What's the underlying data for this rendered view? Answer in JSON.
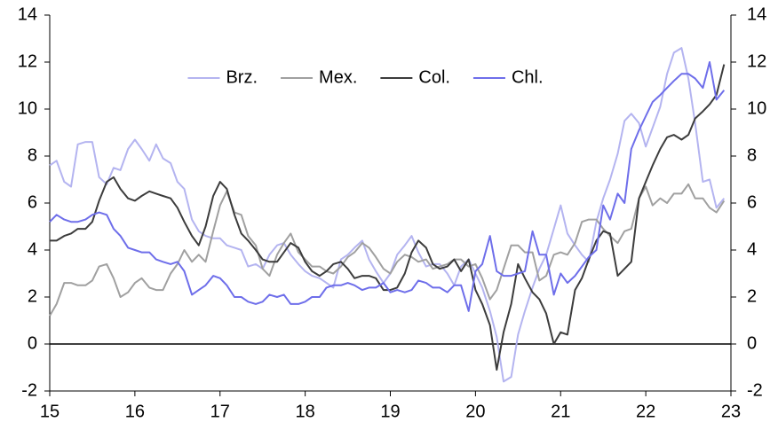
{
  "chart_data": {
    "type": "line",
    "x": [
      15,
      15.08,
      15.17,
      15.25,
      15.33,
      15.42,
      15.5,
      15.58,
      15.67,
      15.75,
      15.83,
      15.92,
      16,
      16.08,
      16.17,
      16.25,
      16.33,
      16.42,
      16.5,
      16.58,
      16.67,
      16.75,
      16.83,
      16.92,
      17,
      17.08,
      17.17,
      17.25,
      17.33,
      17.42,
      17.5,
      17.58,
      17.67,
      17.75,
      17.83,
      17.92,
      18,
      18.08,
      18.17,
      18.25,
      18.33,
      18.42,
      18.5,
      18.58,
      18.67,
      18.75,
      18.83,
      18.92,
      19,
      19.08,
      19.17,
      19.25,
      19.33,
      19.42,
      19.5,
      19.58,
      19.67,
      19.75,
      19.83,
      19.92,
      20,
      20.08,
      20.17,
      20.25,
      20.33,
      20.42,
      20.5,
      20.58,
      20.67,
      20.75,
      20.83,
      20.92,
      21,
      21.08,
      21.17,
      21.25,
      21.33,
      21.42,
      21.5,
      21.58,
      21.67,
      21.75,
      21.83,
      21.92,
      22,
      22.08,
      22.17,
      22.25,
      22.33,
      22.42,
      22.5,
      22.58,
      22.67,
      22.75,
      22.83,
      22.92
    ],
    "series": [
      {
        "name": "Brz.",
        "color": "#b4b4f0",
        "values": [
          7.6,
          7.8,
          6.9,
          6.7,
          8.5,
          8.6,
          8.6,
          7.1,
          6.8,
          7.5,
          7.4,
          8.3,
          8.7,
          8.3,
          7.8,
          8.5,
          7.9,
          7.7,
          6.9,
          6.6,
          5.3,
          4.8,
          4.6,
          4.5,
          4.5,
          4.2,
          4.1,
          4.0,
          3.3,
          3.4,
          3.2,
          3.8,
          4.2,
          4.3,
          3.8,
          3.4,
          3.1,
          2.9,
          2.8,
          2.6,
          2.4,
          3.6,
          3.8,
          4.1,
          4.4,
          3.6,
          3.1,
          2.6,
          3.0,
          3.8,
          4.2,
          4.6,
          3.9,
          3.3,
          3.4,
          3.4,
          3.0,
          2.5,
          3.3,
          3.6,
          3.0,
          2.4,
          1.4,
          0.3,
          -1.6,
          -1.4,
          0.4,
          1.4,
          2.4,
          3.2,
          3.8,
          4.9,
          5.9,
          4.7,
          4.2,
          3.8,
          3.5,
          5.2,
          6.2,
          7.0,
          8.1,
          9.5,
          9.8,
          9.4,
          8.4,
          9.2,
          10.1,
          11.5,
          12.4,
          12.6,
          11.3,
          9.4,
          6.9,
          7.0,
          5.8,
          6.2
        ]
      },
      {
        "name": "Mex.",
        "color": "#a0a0a0",
        "values": [
          1.2,
          1.7,
          2.6,
          2.6,
          2.5,
          2.5,
          2.7,
          3.3,
          3.4,
          2.8,
          2.0,
          2.2,
          2.6,
          2.8,
          2.4,
          2.3,
          2.3,
          3.0,
          3.4,
          4.0,
          3.5,
          3.8,
          3.5,
          4.8,
          5.9,
          6.5,
          5.6,
          5.5,
          4.6,
          4.2,
          3.2,
          2.9,
          3.8,
          4.3,
          4.7,
          3.9,
          3.6,
          3.3,
          3.3,
          3.1,
          3.0,
          3.3,
          3.7,
          3.9,
          4.3,
          4.1,
          3.7,
          3.2,
          3.0,
          3.5,
          3.8,
          3.7,
          3.5,
          3.6,
          3.2,
          3.3,
          3.4,
          3.6,
          3.6,
          3.3,
          3.4,
          2.8,
          1.9,
          2.3,
          3.2,
          4.2,
          4.2,
          3.9,
          3.9,
          2.7,
          2.9,
          3.8,
          3.9,
          3.8,
          4.3,
          5.2,
          5.3,
          5.3,
          4.9,
          4.6,
          4.3,
          4.8,
          4.9,
          6.2,
          6.7,
          5.9,
          6.2,
          6.0,
          6.4,
          6.4,
          6.8,
          6.2,
          6.2,
          5.8,
          5.6,
          6.1
        ]
      },
      {
        "name": "Col.",
        "color": "#3c3c3c",
        "values": [
          4.4,
          4.4,
          4.6,
          4.7,
          4.9,
          4.9,
          5.2,
          6.1,
          6.9,
          7.1,
          6.6,
          6.2,
          6.1,
          6.3,
          6.5,
          6.4,
          6.3,
          6.2,
          5.8,
          5.2,
          4.6,
          4.2,
          5.0,
          6.3,
          6.9,
          6.6,
          5.5,
          4.7,
          4.4,
          4.0,
          3.6,
          3.5,
          3.5,
          3.9,
          4.3,
          4.1,
          3.5,
          3.1,
          2.9,
          3.1,
          3.4,
          3.5,
          3.2,
          2.8,
          2.9,
          2.9,
          2.8,
          2.3,
          2.3,
          2.4,
          3.0,
          3.9,
          4.4,
          4.1,
          3.4,
          3.2,
          3.3,
          3.6,
          3.1,
          3.6,
          2.3,
          1.7,
          0.8,
          -1.1,
          0.5,
          1.7,
          3.4,
          2.8,
          2.2,
          1.9,
          1.3,
          0.0,
          0.5,
          0.4,
          2.3,
          2.8,
          3.6,
          4.4,
          4.8,
          4.7,
          2.9,
          3.2,
          3.5,
          6.2,
          6.9,
          7.6,
          8.3,
          8.8,
          8.9,
          8.7,
          8.9,
          9.6,
          9.9,
          10.2,
          10.6,
          11.9
        ]
      },
      {
        "name": "Chl.",
        "color": "#6e6eea",
        "values": [
          5.2,
          5.5,
          5.3,
          5.2,
          5.2,
          5.3,
          5.5,
          5.6,
          5.5,
          4.9,
          4.6,
          4.1,
          4.0,
          3.9,
          3.9,
          3.6,
          3.5,
          3.4,
          3.5,
          3.1,
          2.1,
          2.3,
          2.5,
          2.9,
          2.8,
          2.5,
          2.0,
          2.0,
          1.8,
          1.7,
          1.8,
          2.1,
          2.0,
          2.1,
          1.7,
          1.7,
          1.8,
          2.0,
          2.0,
          2.4,
          2.5,
          2.5,
          2.6,
          2.5,
          2.3,
          2.4,
          2.4,
          2.6,
          2.2,
          2.3,
          2.2,
          2.3,
          2.7,
          2.6,
          2.4,
          2.4,
          2.2,
          2.5,
          2.5,
          1.4,
          3.1,
          3.4,
          4.6,
          3.1,
          2.9,
          2.9,
          3.0,
          3.1,
          4.8,
          3.8,
          3.8,
          2.1,
          3.0,
          2.6,
          2.9,
          3.3,
          3.7,
          4.0,
          5.9,
          5.3,
          6.4,
          6.0,
          8.3,
          9.1,
          9.7,
          10.3,
          10.6,
          10.9,
          11.2,
          11.5,
          11.5,
          11.3,
          10.9,
          12.0,
          10.4,
          10.8
        ]
      }
    ],
    "xlim": [
      15,
      23
    ],
    "xticks": [
      15,
      16,
      17,
      18,
      19,
      20,
      21,
      22,
      23
    ],
    "ylim": [
      -2,
      14
    ],
    "yticks": [
      -2,
      0,
      2,
      4,
      6,
      8,
      10,
      12,
      14
    ],
    "y2lim": [
      -2,
      14
    ],
    "y2ticks": [
      -2,
      0,
      2,
      4,
      6,
      8,
      10,
      12,
      14
    ],
    "legend": "top-center"
  }
}
